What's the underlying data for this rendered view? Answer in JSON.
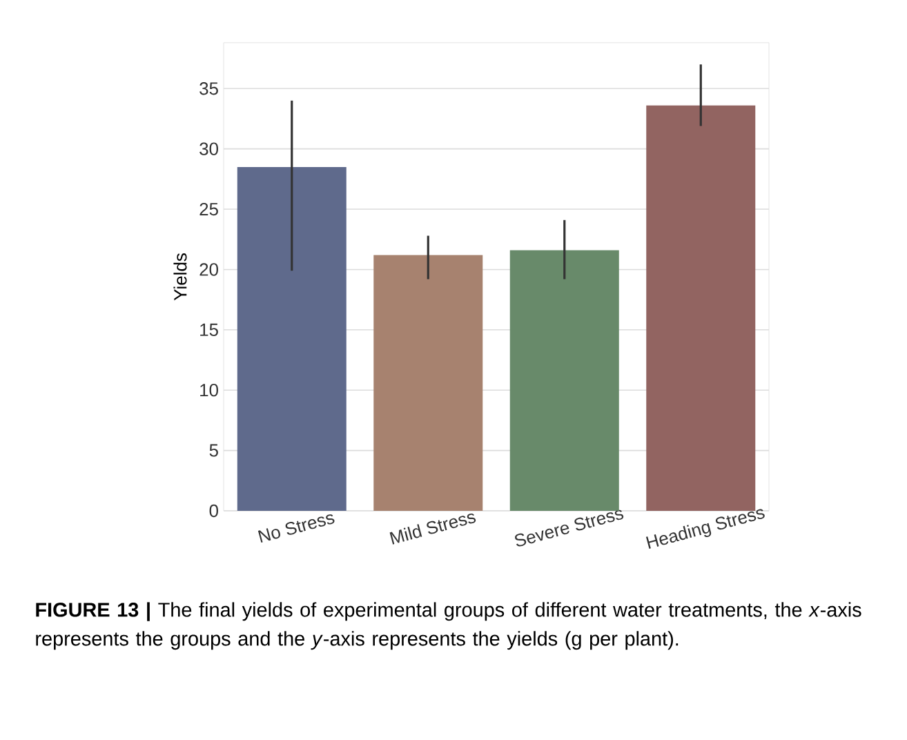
{
  "chart_data": {
    "type": "bar",
    "ylabel": "Yields",
    "categories": [
      "No Stress",
      "Mild Stress",
      "Severe Stress",
      "Heading Stress"
    ],
    "values": [
      28.5,
      21.2,
      21.6,
      33.6
    ],
    "colors": [
      "#5f6a8c",
      "#a7826f",
      "#688a6a",
      "#926461"
    ],
    "errors": [
      [
        19.9,
        34.0
      ],
      [
        19.2,
        22.8
      ],
      [
        19.2,
        24.1
      ],
      [
        31.9,
        37.0
      ]
    ],
    "ylim": [
      0,
      38.8
    ],
    "yticks": [
      0,
      5,
      10,
      15,
      20,
      25,
      30,
      35
    ],
    "grid": "y",
    "annotations": [
      "**FIGURE 13 |** The final yields of experimental groups of different water treatments, the *x*-axis represents the groups and the *y*-axis represents the yields (g per plant)."
    ]
  }
}
